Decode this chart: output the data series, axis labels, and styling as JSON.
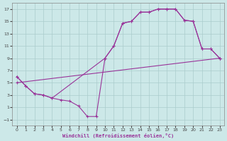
{
  "xlabel": "Windchill (Refroidissement éolien,°C)",
  "bg_color": "#cce8e8",
  "grid_color": "#aacccc",
  "line_color": "#993399",
  "xlim": [
    -0.5,
    23.5
  ],
  "ylim": [
    -2,
    18
  ],
  "xticks": [
    0,
    1,
    2,
    3,
    4,
    5,
    6,
    7,
    8,
    9,
    10,
    11,
    12,
    13,
    14,
    15,
    16,
    17,
    18,
    19,
    20,
    21,
    22,
    23
  ],
  "yticks": [
    -1,
    1,
    3,
    5,
    7,
    9,
    11,
    13,
    15,
    17
  ],
  "line1_x": [
    0,
    1,
    2,
    3,
    4,
    10,
    11,
    12,
    13,
    14,
    15,
    16,
    17,
    18,
    19,
    20,
    21,
    22,
    23
  ],
  "line1_y": [
    6,
    4.5,
    3.2,
    3.0,
    2.5,
    9.0,
    11.0,
    14.7,
    15.0,
    16.5,
    16.5,
    17.0,
    17.0,
    17.0,
    15.2,
    15.0,
    10.5,
    10.5,
    9.0
  ],
  "line2_x": [
    0,
    1,
    2,
    3,
    4,
    5,
    6,
    7,
    8,
    9,
    10,
    11,
    12,
    13,
    14,
    15,
    16,
    17,
    18,
    19,
    20,
    21,
    22,
    23
  ],
  "line2_y": [
    6,
    4.5,
    3.2,
    3.0,
    2.5,
    2.2,
    2.0,
    1.2,
    -0.5,
    -0.5,
    9.0,
    11.0,
    14.7,
    15.0,
    16.5,
    16.5,
    17.0,
    17.0,
    17.0,
    15.2,
    15.0,
    10.5,
    10.5,
    9.0
  ],
  "line3_x": [
    0,
    23
  ],
  "line3_y": [
    5.0,
    9.0
  ]
}
